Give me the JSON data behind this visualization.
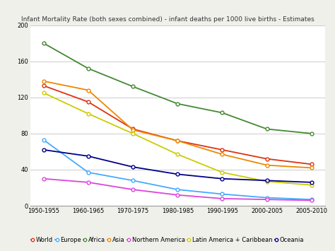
{
  "title": "Infant Mortality Rate (both sexes combined) - infant deaths per 1000 live births - Estimates",
  "x_labels": [
    "1950-1955",
    "1960-1965",
    "1970-1975",
    "1980-1985",
    "1990-1995",
    "2000-2005",
    "2005-2010"
  ],
  "x_positions": [
    0,
    1,
    2,
    3,
    4,
    5,
    6
  ],
  "series": [
    {
      "name": "World",
      "color": "#dd3311",
      "values": [
        133,
        115,
        85,
        72,
        62,
        52,
        46
      ]
    },
    {
      "name": "Europe",
      "color": "#44aaff",
      "values": [
        73,
        37,
        28,
        18,
        13,
        9,
        7
      ]
    },
    {
      "name": "Africa",
      "color": "#448833",
      "values": [
        180,
        152,
        132,
        113,
        103,
        85,
        80
      ]
    },
    {
      "name": "Asia",
      "color": "#ee8800",
      "values": [
        138,
        128,
        84,
        72,
        57,
        45,
        42
      ]
    },
    {
      "name": "Northern America",
      "color": "#dd44dd",
      "values": [
        30,
        26,
        18,
        12,
        8,
        7,
        6
      ]
    },
    {
      "name": "Latin America + Caribbean",
      "color": "#cccc00",
      "values": [
        125,
        102,
        80,
        57,
        37,
        27,
        23
      ]
    },
    {
      "name": "Oceania",
      "color": "#000088",
      "values": [
        62,
        55,
        43,
        35,
        30,
        28,
        26
      ]
    }
  ],
  "ylim": [
    0,
    200
  ],
  "yticks": [
    0,
    40,
    80,
    120,
    160,
    200
  ],
  "bg_color": "#f0f0eb",
  "plot_bg_color": "#ffffff",
  "grid_color": "#cccccc",
  "title_fontsize": 6.5,
  "tick_fontsize": 6,
  "legend_fontsize": 6
}
